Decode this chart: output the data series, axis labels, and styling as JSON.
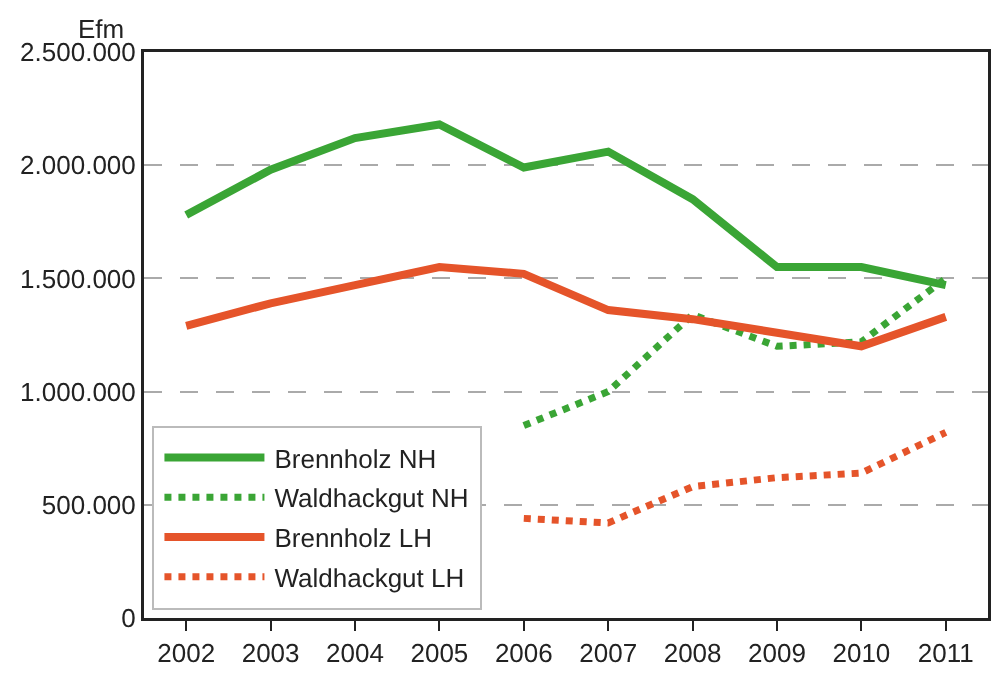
{
  "chart_data": {
    "type": "line",
    "ylabel": "Efm",
    "categories": [
      "2002",
      "2003",
      "2004",
      "2005",
      "2006",
      "2007",
      "2008",
      "2009",
      "2010",
      "2011"
    ],
    "series": [
      {
        "name": "Brennholz NH",
        "color": "#3aa535",
        "line_style": "solid",
        "values": [
          1780000,
          1980000,
          2120000,
          2180000,
          1990000,
          2060000,
          1850000,
          1550000,
          1550000,
          1470000
        ]
      },
      {
        "name": "Waldhackgut NH",
        "color": "#3aa535",
        "line_style": "dotted",
        "values": [
          null,
          null,
          null,
          null,
          850000,
          1000000,
          1340000,
          1200000,
          1220000,
          1500000
        ]
      },
      {
        "name": "Brennholz LH",
        "color": "#e5542a",
        "line_style": "solid",
        "values": [
          1290000,
          1390000,
          1470000,
          1550000,
          1520000,
          1360000,
          1320000,
          1260000,
          1200000,
          1330000
        ]
      },
      {
        "name": "Waldhackgut LH",
        "color": "#e5542a",
        "line_style": "dotted",
        "values": [
          null,
          null,
          null,
          null,
          440000,
          420000,
          580000,
          620000,
          640000,
          820000
        ]
      }
    ],
    "ylim": [
      0,
      2500000
    ],
    "yticks": [
      0,
      {
        "value": 500000,
        "label": "500.000"
      },
      {
        "value": 1000000,
        "label": "1.000.000"
      },
      {
        "value": 1500000,
        "label": "1.500.000"
      },
      {
        "value": 2000000,
        "label": "2.000.000"
      },
      {
        "value": 2500000,
        "label": "2.500.000"
      }
    ],
    "grid": "y",
    "legend": "bottom left",
    "marker": "none"
  }
}
